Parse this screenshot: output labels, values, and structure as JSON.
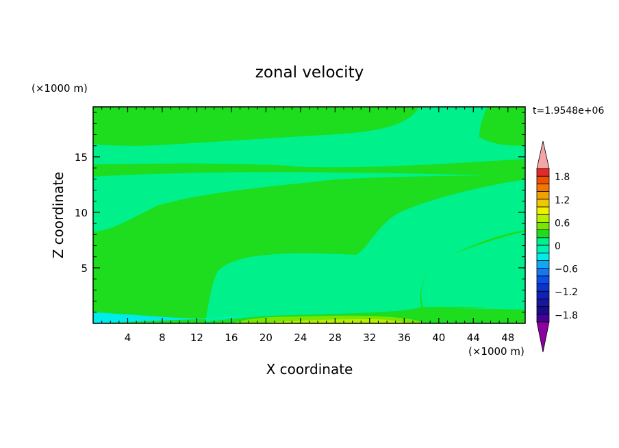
{
  "chart_data": {
    "type": "heatmap",
    "title": "zonal velocity",
    "xlabel": "X coordinate",
    "ylabel": "Z coordinate",
    "x_unit": "(×1000 m)",
    "y_unit": "(×1000 m)",
    "time_label": "t=1.9548e+06",
    "xlim": [
      0,
      50
    ],
    "ylim": [
      0,
      19.5
    ],
    "x_ticks": [
      4,
      8,
      12,
      16,
      20,
      24,
      28,
      32,
      36,
      40,
      44,
      48
    ],
    "y_ticks": [
      5,
      10,
      15
    ],
    "colorbar": {
      "levels": [
        -2.0,
        -1.8,
        -1.6,
        -1.4,
        -1.2,
        -1.0,
        -0.8,
        -0.6,
        -0.4,
        -0.2,
        0,
        0.2,
        0.4,
        0.6,
        0.8,
        1.0,
        1.2,
        1.4,
        1.6,
        1.8,
        2.0
      ],
      "colors": [
        "#46009a",
        "#1a0a8c",
        "#16169e",
        "#1020b8",
        "#0a34d0",
        "#0a50e8",
        "#1478f0",
        "#10a8f4",
        "#00ecec",
        "#00f0b4",
        "#00f08c",
        "#1edc1e",
        "#78e600",
        "#b4f000",
        "#f0f000",
        "#f0c800",
        "#f0a000",
        "#f07800",
        "#f05000",
        "#e62828"
      ],
      "tick_labels": [
        "-1.8",
        "-1.2",
        "-0.6",
        "0",
        "0.6",
        "1.2",
        "1.8"
      ],
      "tick_values": [
        -1.8,
        -1.2,
        -0.6,
        0,
        0.6,
        1.2,
        1.8
      ],
      "under_color": "#8c00a0",
      "over_color": "#f4a6a6"
    },
    "field_levels": {
      "background": "-0.2 to 0",
      "regions": [
        "0 to 0.2",
        "0 to 0.2",
        "0 to 0.2",
        "0 to 0.2",
        "-0.4 to -0.2",
        "0.2 to 0.4",
        "0.4 to 0.6"
      ]
    }
  }
}
